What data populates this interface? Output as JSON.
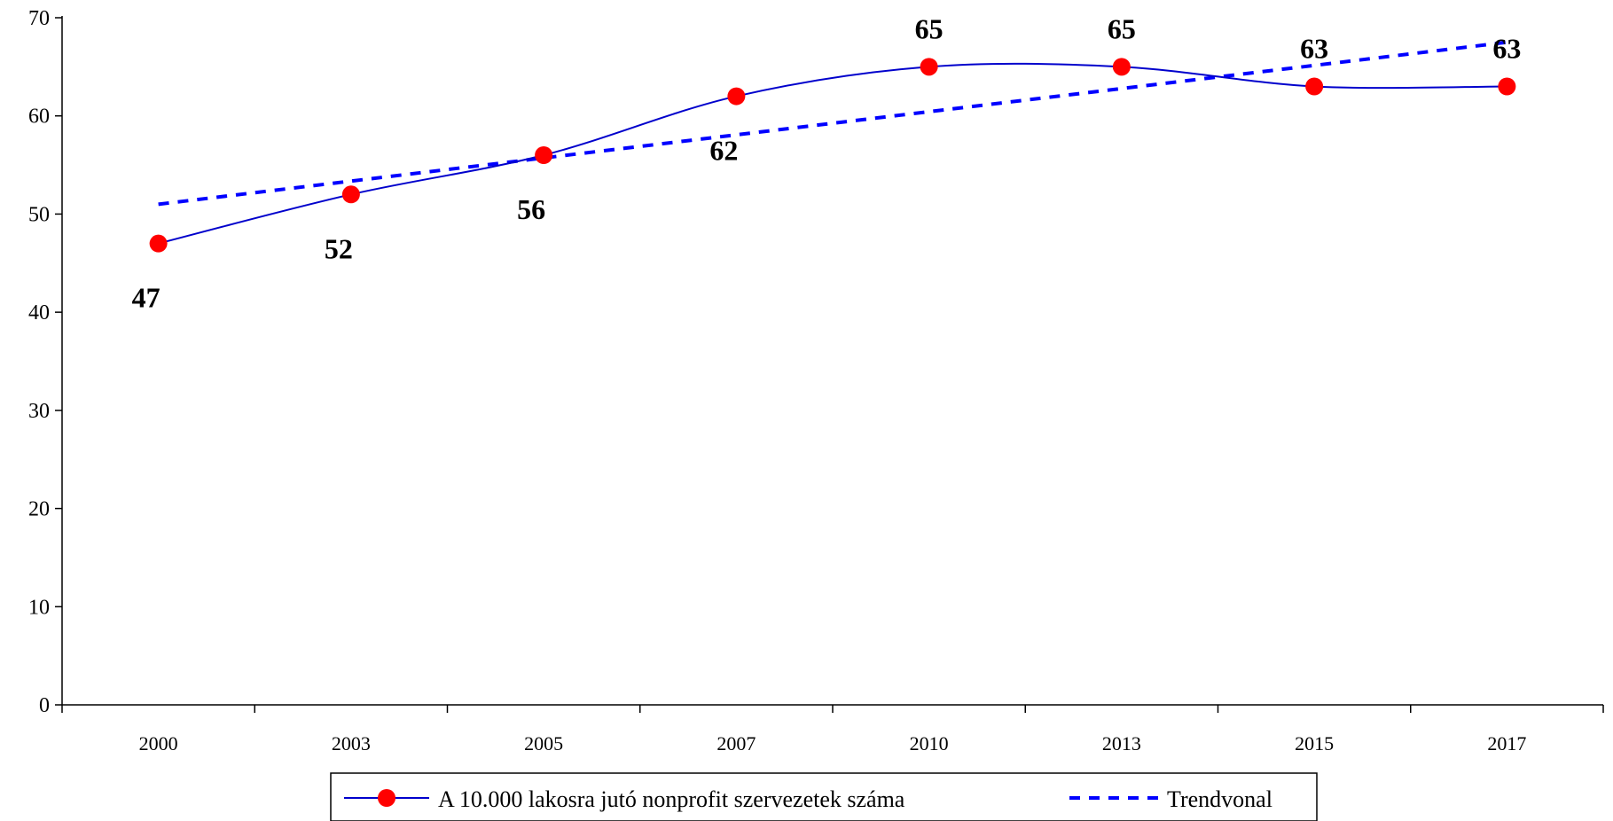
{
  "chart_data": {
    "type": "line",
    "title": "",
    "xlabel": "",
    "ylabel": "",
    "categories": [
      "2000",
      "2003",
      "2005",
      "2007",
      "2010",
      "2013",
      "2015",
      "2017"
    ],
    "ylim": [
      0,
      70
    ],
    "yticks": [
      0,
      10,
      20,
      30,
      40,
      50,
      60,
      70
    ],
    "grid": false,
    "legend_position": "bottom",
    "series": [
      {
        "name": "A 10.000 lakosra jutó nonprofit szervezetek száma",
        "values": [
          47,
          52,
          56,
          62,
          65,
          65,
          63,
          63
        ],
        "labels": [
          "47",
          "52",
          "56",
          "62",
          "65",
          "65",
          "63",
          "63"
        ],
        "color": "#0000cc",
        "marker_color": "#ff0000",
        "style": "solid-smooth"
      },
      {
        "name": "Trendvonal",
        "start": 51,
        "end": 67.5,
        "color": "#0000ff",
        "style": "dashed"
      }
    ]
  }
}
